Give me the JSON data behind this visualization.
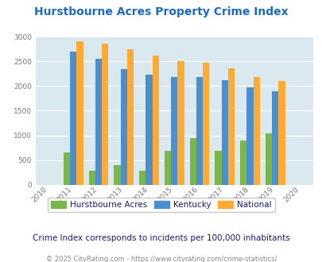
{
  "title": "Hurstbourne Acres Property Crime Index",
  "subtitle": "Crime Index corresponds to incidents per 100,000 inhabitants",
  "footer": "© 2025 CityRating.com - https://www.cityrating.com/crime-statistics/",
  "years": [
    2010,
    2011,
    2012,
    2013,
    2014,
    2015,
    2016,
    2017,
    2018,
    2019,
    2020
  ],
  "data_years": [
    2011,
    2012,
    2013,
    2014,
    2015,
    2016,
    2017,
    2018,
    2019
  ],
  "hurstbourne": [
    650,
    280,
    390,
    280,
    690,
    950,
    690,
    890,
    1040
  ],
  "kentucky": [
    2700,
    2550,
    2350,
    2230,
    2180,
    2180,
    2120,
    1980,
    1900
  ],
  "national": [
    2900,
    2860,
    2750,
    2610,
    2500,
    2470,
    2360,
    2190,
    2110
  ],
  "color_green": "#7ab648",
  "color_blue": "#4d8fcc",
  "color_orange": "#ffaa33",
  "bg_color": "#dae8f0",
  "title_color": "#1a6bbf",
  "subtitle_color": "#1a1a6e",
  "footer_color": "#888888",
  "legend_text_color": "#1a1a6e",
  "ylim": [
    0,
    3000
  ],
  "yticks": [
    0,
    500,
    1000,
    1500,
    2000,
    2500,
    3000
  ],
  "bar_width": 0.26
}
